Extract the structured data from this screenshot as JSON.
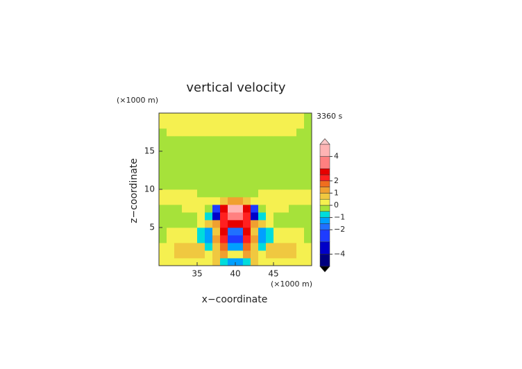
{
  "chart_data": {
    "type": "contour",
    "title": "vertical velocity",
    "x_label": "x−coordinate",
    "y_label": "z−coordinate",
    "x_units": "(×1000 m)",
    "y_units": "(×1000 m)",
    "time_label": "3360 s",
    "xlim": [
      30,
      50
    ],
    "ylim": [
      0,
      20
    ],
    "xticks": [
      35,
      40,
      45
    ],
    "yticks": [
      5,
      10,
      15
    ],
    "x": [
      30.5,
      31.5,
      32.5,
      33.5,
      34.5,
      35.5,
      36.5,
      37.5,
      38.5,
      39.5,
      40.5,
      41.5,
      42.5,
      43.5,
      44.5,
      45.5,
      46.5,
      47.5,
      48.5,
      49.5
    ],
    "y": [
      0.5,
      1.5,
      2.5,
      3.5,
      4.5,
      5.5,
      6.5,
      7.5,
      8.5,
      9.5,
      10.5,
      11.5,
      12.5,
      13.5,
      14.5,
      15.5,
      16.5,
      17.5,
      18.5,
      19.5
    ],
    "z": [
      [
        0.3,
        0.3,
        0.3,
        0.3,
        0.3,
        0.3,
        0.3,
        0.6,
        -0.6,
        -1.2,
        -1.2,
        -0.6,
        0.6,
        0.3,
        0.3,
        0.3,
        0.3,
        0.3,
        0.3,
        0.3
      ],
      [
        0.3,
        0.3,
        0.7,
        0.9,
        0.9,
        0.7,
        0.3,
        0.8,
        1.2,
        0.3,
        0.3,
        1.2,
        0.8,
        0.3,
        0.7,
        0.9,
        0.9,
        0.7,
        0.3,
        0.3
      ],
      [
        0.3,
        0.4,
        0.7,
        0.9,
        0.8,
        0.6,
        -0.8,
        0.5,
        1.5,
        -1.2,
        -1.2,
        1.5,
        0.5,
        -0.8,
        0.6,
        0.8,
        0.9,
        0.7,
        0.4,
        0.3
      ],
      [
        -0.2,
        0.3,
        0.3,
        0.4,
        0.3,
        -1,
        -1.3,
        1,
        2.4,
        -2.5,
        -2.5,
        2.4,
        1,
        -1.3,
        -1,
        0.3,
        0.4,
        0.3,
        0.3,
        -0.2
      ],
      [
        -0.2,
        0.2,
        0.3,
        0.3,
        0.2,
        -0.6,
        -1.2,
        0.8,
        2.6,
        -1.8,
        -1.8,
        2.6,
        0.8,
        -1.2,
        -0.6,
        0.2,
        0.3,
        0.3,
        0.2,
        -0.2
      ],
      [
        -0.2,
        -0.2,
        -0.2,
        -0.2,
        -0.2,
        0.3,
        0.6,
        1.2,
        2.4,
        2.6,
        2.6,
        2.4,
        1.2,
        0.6,
        0.3,
        -0.2,
        -0.2,
        -0.2,
        -0.2,
        -0.2
      ],
      [
        -0.2,
        -0.2,
        -0.2,
        -0.2,
        -0.2,
        0.2,
        -1,
        -3.5,
        2.2,
        3.5,
        3.5,
        2.2,
        -3.5,
        -1,
        0.2,
        -0.2,
        -0.2,
        -0.2,
        -0.2,
        -0.2
      ],
      [
        -0.2,
        -0.2,
        -0.2,
        0.2,
        0.2,
        0.3,
        -0.5,
        -2.5,
        2.5,
        4.2,
        4.2,
        2.5,
        -2.5,
        -0.5,
        0.3,
        0.2,
        0.2,
        -0.2,
        -0.2,
        -0.2
      ],
      [
        0.2,
        0.2,
        0.2,
        0.2,
        0.2,
        0.2,
        0.3,
        0.3,
        0.7,
        1.2,
        1.2,
        0.7,
        0.3,
        0.3,
        0.2,
        0.2,
        0.2,
        0.2,
        0.2,
        0.2
      ],
      [
        0.2,
        0.2,
        0.2,
        0.2,
        0.2,
        -0.2,
        -0.2,
        -0.2,
        -0.2,
        -0.2,
        -0.2,
        -0.2,
        -0.2,
        0.2,
        0.2,
        0.2,
        0.2,
        0.2,
        0.2,
        0.2
      ],
      [
        -0.2,
        -0.2,
        -0.2,
        -0.2,
        -0.2,
        -0.2,
        -0.2,
        -0.2,
        -0.2,
        -0.2,
        -0.2,
        -0.2,
        -0.2,
        -0.2,
        -0.2,
        -0.2,
        -0.2,
        -0.2,
        -0.2,
        -0.2
      ],
      [
        -0.2,
        -0.2,
        -0.2,
        -0.2,
        -0.2,
        -0.2,
        -0.2,
        -0.2,
        -0.2,
        -0.2,
        -0.2,
        -0.2,
        -0.2,
        -0.2,
        -0.2,
        -0.2,
        -0.2,
        -0.2,
        -0.2,
        -0.2
      ],
      [
        -0.2,
        -0.2,
        -0.2,
        -0.2,
        -0.2,
        -0.2,
        -0.2,
        -0.2,
        -0.2,
        -0.2,
        -0.2,
        -0.2,
        -0.2,
        -0.2,
        -0.2,
        -0.2,
        -0.2,
        -0.2,
        -0.2,
        -0.2
      ],
      [
        -0.2,
        -0.2,
        -0.2,
        -0.2,
        -0.2,
        -0.2,
        -0.2,
        -0.2,
        -0.2,
        -0.2,
        -0.2,
        -0.2,
        -0.2,
        -0.2,
        -0.2,
        -0.2,
        -0.2,
        -0.2,
        -0.2,
        -0.2
      ],
      [
        -0.2,
        -0.2,
        -0.2,
        -0.2,
        -0.2,
        -0.2,
        -0.2,
        -0.2,
        -0.2,
        -0.2,
        -0.2,
        -0.2,
        -0.2,
        -0.2,
        -0.2,
        -0.2,
        -0.2,
        -0.2,
        -0.2,
        -0.2
      ],
      [
        -0.2,
        -0.2,
        -0.2,
        -0.2,
        -0.2,
        -0.2,
        -0.2,
        -0.2,
        -0.2,
        -0.2,
        -0.2,
        -0.2,
        -0.2,
        -0.2,
        -0.2,
        -0.2,
        -0.2,
        -0.2,
        -0.2,
        -0.2
      ],
      [
        -0.2,
        -0.2,
        -0.2,
        -0.2,
        -0.2,
        -0.2,
        -0.2,
        -0.2,
        -0.2,
        -0.2,
        -0.2,
        -0.2,
        -0.2,
        -0.2,
        -0.2,
        -0.2,
        -0.2,
        -0.2,
        -0.2,
        -0.2
      ],
      [
        -0.2,
        0.2,
        0.2,
        0.2,
        0.2,
        0.2,
        0.2,
        0.2,
        0.2,
        0.2,
        0.2,
        0.2,
        0.2,
        0.2,
        0.2,
        0.2,
        0.2,
        0.2,
        -0.2,
        -0.2
      ],
      [
        0.2,
        0.2,
        0.2,
        0.2,
        0.2,
        0.2,
        0.2,
        0.2,
        0.2,
        0.2,
        0.2,
        0.2,
        0.2,
        0.2,
        0.2,
        0.2,
        0.2,
        0.2,
        0.2,
        -0.2
      ],
      [
        0.2,
        0.2,
        0.2,
        0.2,
        0.2,
        0.2,
        0.2,
        0.2,
        0.2,
        0.2,
        0.2,
        0.2,
        0.2,
        0.2,
        0.2,
        0.2,
        0.2,
        0.2,
        0.2,
        -0.2
      ]
    ],
    "levels": [
      -5,
      -4,
      -3,
      -2,
      -1.5,
      -1,
      -0.5,
      0,
      0.5,
      1,
      1.5,
      2,
      2.5,
      3,
      4,
      5
    ],
    "colors": [
      "#00007f",
      "#0000c8",
      "#1e3cff",
      "#2070ff",
      "#00a0ff",
      "#00dcdc",
      "#a6e23a",
      "#f5f050",
      "#f0c840",
      "#f0a030",
      "#f06e1e",
      "#ff2020",
      "#e60000",
      "#ff8080",
      "#ffb4b4"
    ],
    "under_color": "#000000",
    "over_color": "#ffc8c8",
    "cbticks": [
      4,
      2,
      1,
      0,
      {
        "value": -1,
        "label": "−1"
      },
      {
        "value": -2,
        "label": "−2"
      },
      {
        "value": -4,
        "label": "−4"
      }
    ]
  }
}
